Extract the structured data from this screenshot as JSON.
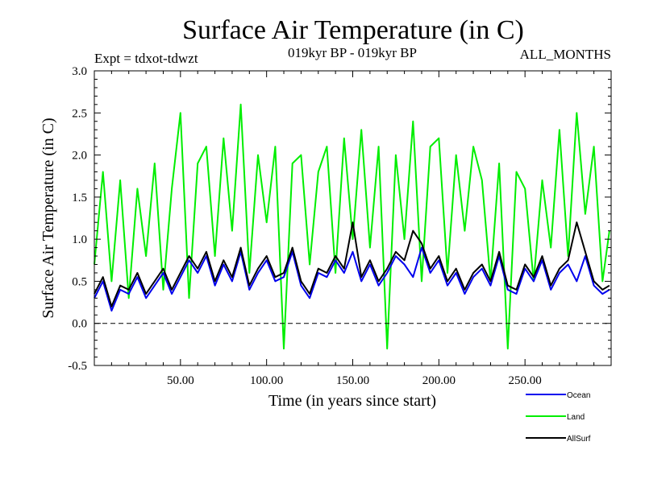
{
  "chart_data": {
    "type": "line",
    "title": "Surface Air Temperature (in C)",
    "subtitle_left": "Expt = tdxot-tdwzt",
    "subtitle_center": "019kyr BP - 019kyr BP",
    "subtitle_right": "ALL_MONTHS",
    "xlabel": "Time (in years since start)",
    "ylabel": "Surface Air Temperature (in C)",
    "xlim": [
      0,
      300
    ],
    "ylim": [
      -0.5,
      3.0
    ],
    "x_ticks": [
      50,
      100,
      150,
      200,
      250
    ],
    "x_tick_labels": [
      "50.00",
      "100.00",
      "150.00",
      "200.00",
      "250.00"
    ],
    "y_ticks": [
      -0.5,
      0.0,
      0.5,
      1.0,
      1.5,
      2.0,
      2.5,
      3.0
    ],
    "y_tick_labels": [
      "-0.5",
      "0.0",
      "0.5",
      "1.0",
      "1.5",
      "2.0",
      "2.5",
      "3.0"
    ],
    "reference_line": {
      "y": 0.0,
      "style": "dashed"
    },
    "legend_position": "bottom-right",
    "grid": false,
    "series": [
      {
        "name": "Land",
        "color": "#00ee00",
        "x": [
          0,
          5,
          10,
          15,
          20,
          25,
          30,
          35,
          40,
          45,
          50,
          55,
          60,
          65,
          70,
          75,
          80,
          85,
          90,
          95,
          100,
          105,
          110,
          115,
          120,
          125,
          130,
          135,
          140,
          145,
          150,
          155,
          160,
          165,
          170,
          175,
          180,
          185,
          190,
          195,
          200,
          205,
          210,
          215,
          220,
          225,
          230,
          235,
          240,
          245,
          250,
          255,
          260,
          265,
          270,
          275,
          280,
          285,
          290,
          295,
          299
        ],
        "values": [
          0.7,
          1.8,
          0.5,
          1.7,
          0.3,
          1.6,
          0.8,
          1.9,
          0.4,
          1.6,
          2.5,
          0.3,
          1.9,
          2.1,
          0.8,
          2.2,
          1.1,
          2.6,
          0.6,
          2.0,
          1.2,
          2.1,
          -0.3,
          1.9,
          2.0,
          0.7,
          1.8,
          2.1,
          0.6,
          2.2,
          1.0,
          2.3,
          0.9,
          2.1,
          -0.3,
          2.0,
          1.0,
          2.4,
          0.5,
          2.1,
          2.2,
          0.6,
          2.0,
          1.1,
          2.1,
          1.7,
          0.5,
          1.9,
          -0.3,
          1.8,
          1.6,
          0.5,
          1.7,
          0.9,
          2.3,
          0.8,
          2.5,
          1.3,
          2.1,
          0.5,
          1.1
        ]
      },
      {
        "name": "Ocean",
        "color": "#0000ee",
        "x": [
          0,
          5,
          10,
          15,
          20,
          25,
          30,
          35,
          40,
          45,
          50,
          55,
          60,
          65,
          70,
          75,
          80,
          85,
          90,
          95,
          100,
          105,
          110,
          115,
          120,
          125,
          130,
          135,
          140,
          145,
          150,
          155,
          160,
          165,
          170,
          175,
          180,
          185,
          190,
          195,
          200,
          205,
          210,
          215,
          220,
          225,
          230,
          235,
          240,
          245,
          250,
          255,
          260,
          265,
          270,
          275,
          280,
          285,
          290,
          295,
          299
        ],
        "values": [
          0.3,
          0.5,
          0.15,
          0.4,
          0.35,
          0.55,
          0.3,
          0.45,
          0.6,
          0.35,
          0.55,
          0.75,
          0.6,
          0.8,
          0.45,
          0.7,
          0.5,
          0.85,
          0.4,
          0.6,
          0.75,
          0.5,
          0.55,
          0.85,
          0.45,
          0.3,
          0.6,
          0.55,
          0.75,
          0.6,
          0.85,
          0.5,
          0.7,
          0.45,
          0.6,
          0.8,
          0.7,
          0.55,
          0.9,
          0.6,
          0.75,
          0.45,
          0.6,
          0.35,
          0.55,
          0.65,
          0.45,
          0.8,
          0.4,
          0.35,
          0.65,
          0.5,
          0.75,
          0.4,
          0.6,
          0.7,
          0.5,
          0.8,
          0.45,
          0.35,
          0.4
        ]
      },
      {
        "name": "AllSurf",
        "color": "#000000",
        "x": [
          0,
          5,
          10,
          15,
          20,
          25,
          30,
          35,
          40,
          45,
          50,
          55,
          60,
          65,
          70,
          75,
          80,
          85,
          90,
          95,
          100,
          105,
          110,
          115,
          120,
          125,
          130,
          135,
          140,
          145,
          150,
          155,
          160,
          165,
          170,
          175,
          180,
          185,
          190,
          195,
          200,
          205,
          210,
          215,
          220,
          225,
          230,
          235,
          240,
          245,
          250,
          255,
          260,
          265,
          270,
          275,
          280,
          285,
          290,
          295,
          299
        ],
        "values": [
          0.35,
          0.55,
          0.2,
          0.45,
          0.4,
          0.6,
          0.35,
          0.5,
          0.65,
          0.4,
          0.6,
          0.8,
          0.65,
          0.85,
          0.5,
          0.75,
          0.55,
          0.9,
          0.45,
          0.65,
          0.8,
          0.55,
          0.6,
          0.9,
          0.5,
          0.35,
          0.65,
          0.6,
          0.8,
          0.65,
          1.2,
          0.55,
          0.75,
          0.5,
          0.65,
          0.85,
          0.75,
          1.1,
          0.95,
          0.65,
          0.8,
          0.5,
          0.65,
          0.4,
          0.6,
          0.7,
          0.5,
          0.85,
          0.45,
          0.4,
          0.7,
          0.55,
          0.8,
          0.45,
          0.65,
          0.75,
          1.2,
          0.85,
          0.5,
          0.4,
          0.45
        ]
      }
    ]
  }
}
